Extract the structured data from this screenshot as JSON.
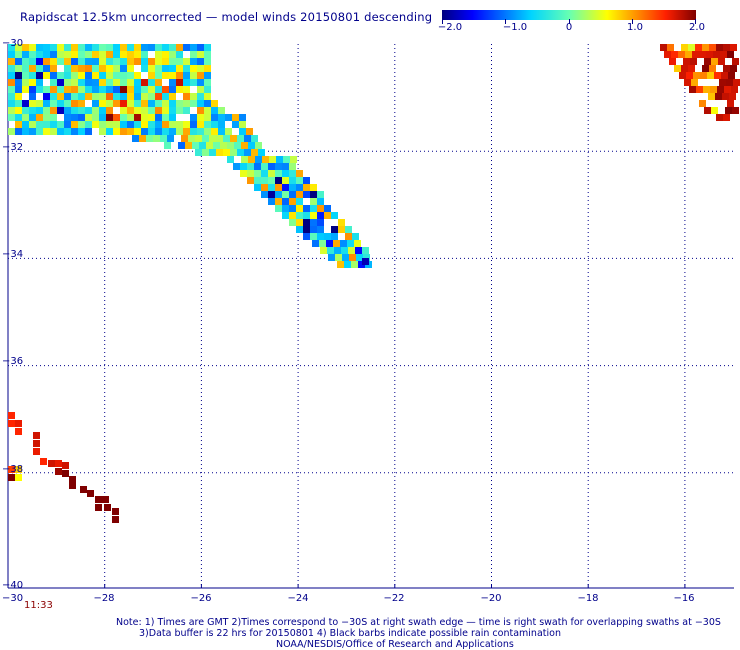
{
  "title": "Rapidscat 12.5km uncorrected — model winds 20150801 descending",
  "colorbar": {
    "labels": [
      "−2.0",
      "−1.0",
      "0",
      "1.0",
      "2.0"
    ],
    "range": [
      -2.0,
      2.0
    ]
  },
  "map": {
    "lat_labels": [
      "−30",
      "−32",
      "−34",
      "−36",
      "−38",
      "−40"
    ],
    "lon_labels": [
      "−30",
      "−28",
      "−26",
      "−24",
      "−22",
      "−20",
      "−18",
      "−16"
    ],
    "lat_range": [
      -40,
      -30
    ],
    "lon_range": [
      -30,
      -15.3
    ],
    "grid_spacing_deg": 2,
    "time_label": "11:33"
  },
  "notes": [
    "Note: 1) Times are GMT 2)Times correspond to −30S at right swath edge — time is right swath for overlapping swaths at −30S",
    "3)Data buffer is 22 hrs for 20150801 4) Black barbs indicate possible rain contamination",
    "NOAA/NESDIS/Office of Research and Applications"
  ],
  "colors": {
    "text": "#00008b",
    "grid": "#00008b",
    "time": "#8b0000"
  }
}
